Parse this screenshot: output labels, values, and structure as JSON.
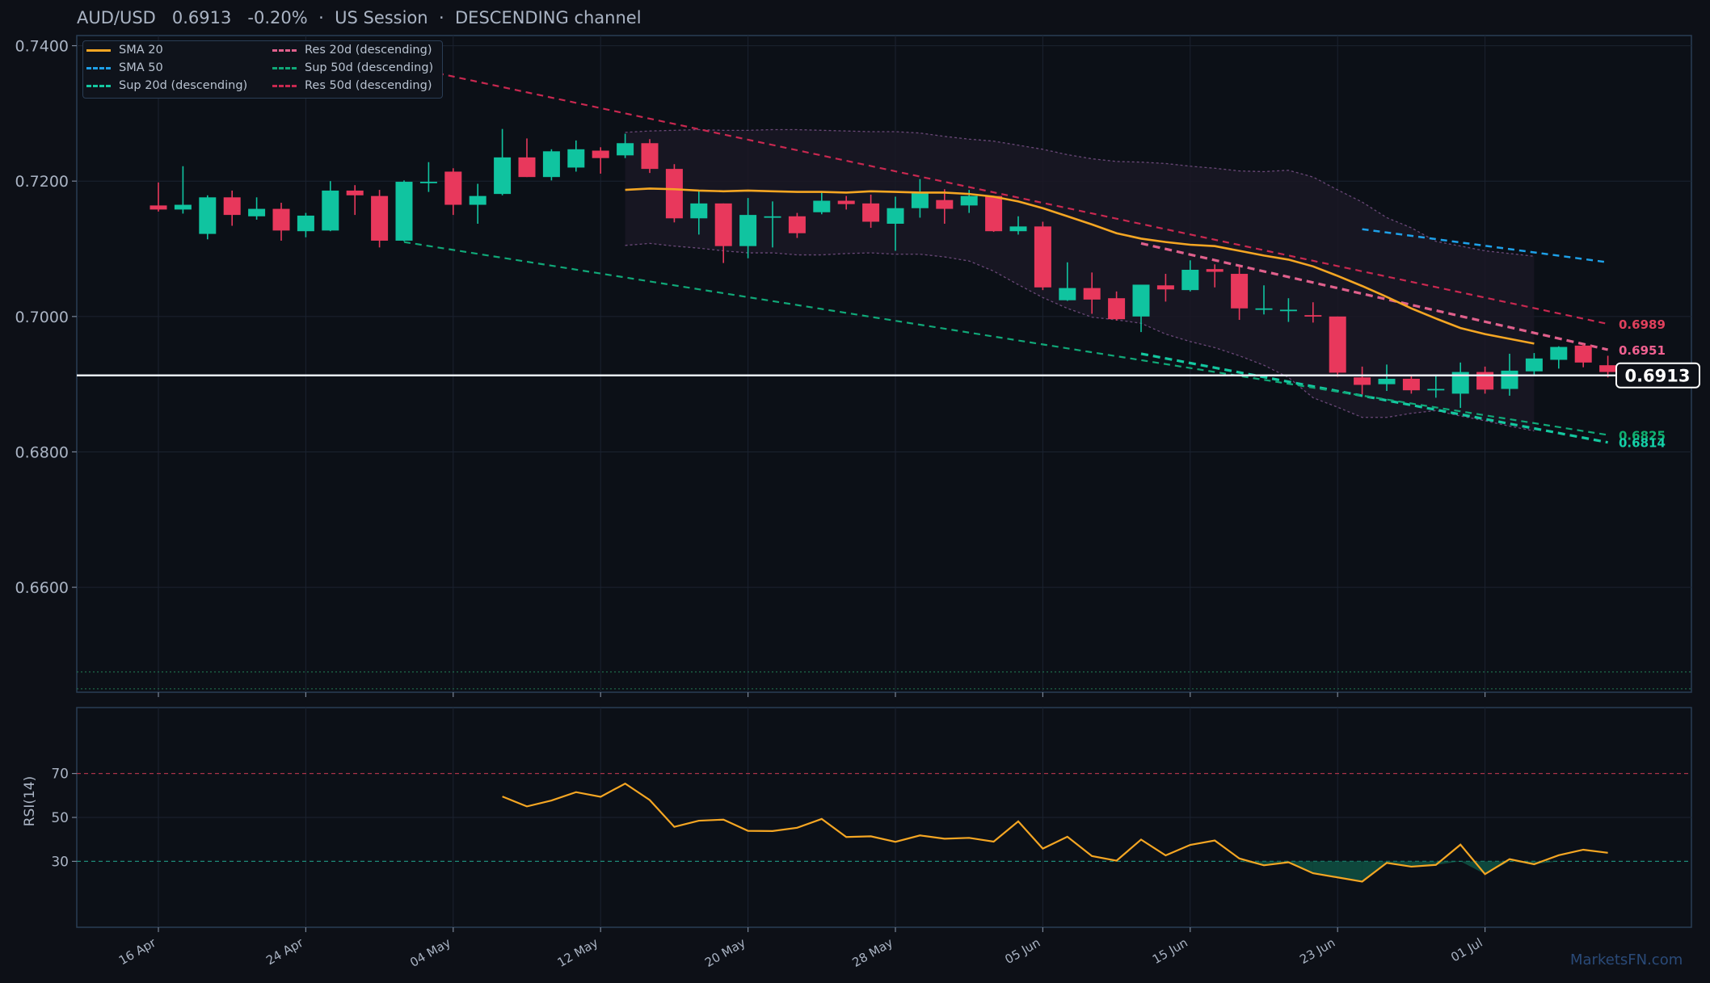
{
  "header": {
    "symbol": "AUD/USD",
    "price": "0.6913",
    "change": "-0.20%",
    "sep1": "·",
    "session": "US Session",
    "sep2": "·",
    "channel": "DESCENDING channel"
  },
  "legend": [
    {
      "label": "SMA 20",
      "color": "#f5a623",
      "style": "solid"
    },
    {
      "label": "SMA 50",
      "color": "#1ea0e8",
      "style": "dashed"
    },
    {
      "label": "Sup 20d (descending)",
      "color": "#14c8a0",
      "style": "dashed"
    },
    {
      "label": "Res 20d (descending)",
      "color": "#e0608c",
      "style": "dashed"
    },
    {
      "label": "Sup 50d (descending)",
      "color": "#10a878",
      "style": "dashed"
    },
    {
      "label": "Res 50d (descending)",
      "color": "#c82850",
      "style": "dashed"
    }
  ],
  "watermark": "MarketsFN.com",
  "colors": {
    "up": "#10c4a0",
    "down": "#e8385c",
    "sma20": "#f5a623",
    "sma50": "#1ea0e8",
    "last": "#ffffff",
    "grid": "#1b2230",
    "frame": "#2a3d55"
  },
  "chart_data": [
    {
      "type": "candlestick",
      "title": "AUD/USD",
      "ylim": [
        0.6445,
        0.7415
      ],
      "yticks": [
        "0.7400",
        "0.7200",
        "0.7000",
        "0.6800",
        "0.6600"
      ],
      "ytick_values": [
        0.74,
        0.72,
        0.7,
        0.68,
        0.66
      ],
      "xticks": [
        "16 Apr",
        "24 Apr",
        "04 May",
        "12 May",
        "20 May",
        "28 May",
        "05 Jun",
        "15 Jun",
        "23 Jun",
        "01 Jul"
      ],
      "xtick_index": [
        0,
        6,
        12,
        18,
        24,
        30,
        36,
        42,
        48,
        54
      ],
      "candles": [
        [
          0.7164,
          0.7198,
          0.7155,
          0.7158
        ],
        [
          0.7158,
          0.7222,
          0.7152,
          0.7165
        ],
        [
          0.7122,
          0.7179,
          0.7114,
          0.7176
        ],
        [
          0.7176,
          0.7186,
          0.7134,
          0.715
        ],
        [
          0.7148,
          0.7176,
          0.7143,
          0.7159
        ],
        [
          0.7159,
          0.7168,
          0.7112,
          0.7127
        ],
        [
          0.7126,
          0.7153,
          0.7117,
          0.7149
        ],
        [
          0.7127,
          0.72,
          0.7126,
          0.7186
        ],
        [
          0.7186,
          0.7194,
          0.715,
          0.7179
        ],
        [
          0.7178,
          0.7187,
          0.7102,
          0.7112
        ],
        [
          0.7112,
          0.7201,
          0.7111,
          0.7199
        ],
        [
          0.7198,
          0.7228,
          0.7184,
          0.7199
        ],
        [
          0.7214,
          0.7219,
          0.715,
          0.7165
        ],
        [
          0.7165,
          0.7196,
          0.7137,
          0.7178
        ],
        [
          0.7181,
          0.7277,
          0.7179,
          0.7235
        ],
        [
          0.7235,
          0.7263,
          0.7206,
          0.7206
        ],
        [
          0.7206,
          0.7247,
          0.7201,
          0.7244
        ],
        [
          0.722,
          0.726,
          0.7214,
          0.7247
        ],
        [
          0.7245,
          0.725,
          0.7211,
          0.7234
        ],
        [
          0.7238,
          0.727,
          0.7234,
          0.7256
        ],
        [
          0.7256,
          0.7262,
          0.7212,
          0.7218
        ],
        [
          0.7218,
          0.7225,
          0.7139,
          0.7145
        ],
        [
          0.7145,
          0.7187,
          0.7121,
          0.7167
        ],
        [
          0.7167,
          0.7167,
          0.7079,
          0.7104
        ],
        [
          0.7104,
          0.7175,
          0.7086,
          0.715
        ],
        [
          0.7147,
          0.717,
          0.7102,
          0.7148
        ],
        [
          0.7148,
          0.7153,
          0.7116,
          0.7123
        ],
        [
          0.7154,
          0.7185,
          0.7151,
          0.7171
        ],
        [
          0.7171,
          0.7178,
          0.7158,
          0.7166
        ],
        [
          0.7167,
          0.718,
          0.7131,
          0.714
        ],
        [
          0.7137,
          0.7177,
          0.7097,
          0.716
        ],
        [
          0.716,
          0.7203,
          0.7146,
          0.7182
        ],
        [
          0.7172,
          0.7188,
          0.7137,
          0.7159
        ],
        [
          0.7164,
          0.7187,
          0.7153,
          0.7178
        ],
        [
          0.7178,
          0.7178,
          0.7125,
          0.7126
        ],
        [
          0.7126,
          0.7148,
          0.7121,
          0.7133
        ],
        [
          0.7133,
          0.714,
          0.7039,
          0.7043
        ],
        [
          0.7024,
          0.708,
          0.7023,
          0.7042
        ],
        [
          0.7042,
          0.7065,
          0.7004,
          0.7025
        ],
        [
          0.7027,
          0.7037,
          0.6994,
          0.6996
        ],
        [
          0.7,
          0.7045,
          0.6977,
          0.7047
        ],
        [
          0.7046,
          0.7063,
          0.7022,
          0.704
        ],
        [
          0.7039,
          0.7083,
          0.7037,
          0.7069
        ],
        [
          0.707,
          0.7077,
          0.7043,
          0.7066
        ],
        [
          0.7063,
          0.7074,
          0.6995,
          0.7012
        ],
        [
          0.7012,
          0.7046,
          0.7003,
          0.7012
        ],
        [
          0.701,
          0.7027,
          0.6992,
          0.701
        ],
        [
          0.7002,
          0.7021,
          0.6991,
          0.7
        ],
        [
          0.7,
          0.7,
          0.6911,
          0.6917
        ],
        [
          0.691,
          0.6926,
          0.6885,
          0.6899
        ],
        [
          0.69,
          0.6929,
          0.689,
          0.6908
        ],
        [
          0.6908,
          0.6913,
          0.6886,
          0.6891
        ],
        [
          0.6893,
          0.6912,
          0.688,
          0.6893
        ],
        [
          0.6886,
          0.6932,
          0.6865,
          0.6918
        ],
        [
          0.6918,
          0.6926,
          0.6886,
          0.6892
        ],
        [
          0.6893,
          0.6945,
          0.6883,
          0.692
        ],
        [
          0.6919,
          0.6946,
          0.6914,
          0.6938
        ],
        [
          0.6936,
          0.6956,
          0.6923,
          0.6955
        ],
        [
          0.6957,
          0.6959,
          0.6925,
          0.6932
        ],
        [
          0.6928,
          0.6942,
          0.691,
          0.6918
        ]
      ],
      "sma20": {
        "start": 19,
        "values": [
          0.7187,
          0.7189,
          0.7188,
          0.7186,
          0.7185,
          0.7186,
          0.7185,
          0.7184,
          0.7184,
          0.7183,
          0.7185,
          0.7184,
          0.7183,
          0.7183,
          0.7181,
          0.7177,
          0.717,
          0.716,
          0.7148,
          0.7136,
          0.7123,
          0.7115,
          0.711,
          0.7106,
          0.7104,
          0.7097,
          0.709,
          0.7084,
          0.7074,
          0.706,
          0.7045,
          0.7029,
          0.7012,
          0.6997,
          0.6983,
          0.6974,
          0.6967,
          0.696
        ]
      },
      "bands": {
        "start": 19,
        "upper": [
          0.7272,
          0.7274,
          0.7275,
          0.7276,
          0.7275,
          0.7275,
          0.7276,
          0.7276,
          0.7275,
          0.7274,
          0.7273,
          0.7273,
          0.7271,
          0.7266,
          0.7262,
          0.7259,
          0.7253,
          0.7247,
          0.7239,
          0.7233,
          0.7229,
          0.7228,
          0.7226,
          0.7222,
          0.7219,
          0.7215,
          0.7214,
          0.7216,
          0.7206,
          0.7187,
          0.7169,
          0.7146,
          0.7131,
          0.7111,
          0.7104,
          0.7097,
          0.7093,
          0.7089
        ],
        "lower": [
          0.7105,
          0.7108,
          0.7104,
          0.7101,
          0.7097,
          0.7094,
          0.7094,
          0.7091,
          0.7091,
          0.7093,
          0.7094,
          0.7092,
          0.7092,
          0.7088,
          0.7082,
          0.7067,
          0.7047,
          0.7028,
          0.7012,
          0.6999,
          0.6995,
          0.699,
          0.6974,
          0.6963,
          0.6954,
          0.6942,
          0.6928,
          0.691,
          0.688,
          0.6866,
          0.6851,
          0.6851,
          0.6857,
          0.6861,
          0.6853,
          0.6846,
          0.6838,
          0.6831
        ]
      },
      "lines": [
        {
          "name": "SMA 50",
          "color": "#1ea0e8",
          "dash": "8 6",
          "width": 2.5,
          "points": [
            [
              49,
              0.7129
            ],
            [
              59,
              0.708
            ]
          ]
        },
        {
          "name": "Res 20d (descending)",
          "color": "#e0608c",
          "dash": "9 6",
          "width": 3.2,
          "points": [
            [
              40,
              0.7108
            ],
            [
              59,
              0.6951
            ]
          ]
        },
        {
          "name": "Sup 20d (descending)",
          "color": "#14c8a0",
          "dash": "9 6",
          "width": 3.2,
          "points": [
            [
              40,
              0.6945
            ],
            [
              59,
              0.6814
            ]
          ]
        },
        {
          "name": "Res 50d (descending)",
          "color": "#c82850",
          "dash": "8 6",
          "width": 2.2,
          "points": [
            [
              10,
              0.737
            ],
            [
              59,
              0.6989
            ]
          ]
        },
        {
          "name": "Sup 50d (descending)",
          "color": "#10a878",
          "dash": "8 6",
          "width": 2.2,
          "points": [
            [
              10,
              0.711
            ],
            [
              59,
              0.6825
            ]
          ]
        }
      ],
      "end_labels": [
        {
          "text": "0.6989",
          "value": 0.6989,
          "color": "#e0405c"
        },
        {
          "text": "0.6951",
          "value": 0.6951,
          "color": "#f06090"
        },
        {
          "text": "0.6825",
          "value": 0.6825,
          "color": "#10b070"
        },
        {
          "text": "0.6814",
          "value": 0.6814,
          "color": "#14d0a8"
        }
      ],
      "last_price": {
        "text": "0.6913",
        "value": 0.6913
      },
      "hlines": [
        0.6475,
        0.645
      ]
    },
    {
      "type": "line",
      "ylabel": "RSI(14)",
      "ylim": [
        0,
        100
      ],
      "yticks": [
        "70",
        "50",
        "30"
      ],
      "ytick_values": [
        70,
        50,
        30
      ],
      "overbought": 70,
      "oversold": 30,
      "series": [
        {
          "start": 14,
          "values": [
            59.5,
            55.0,
            57.7,
            61.5,
            59.4,
            65.4,
            57.9,
            45.7,
            48.5,
            49.0,
            43.9,
            43.8,
            45.3,
            49.3,
            41.1,
            41.4,
            38.9,
            41.8,
            40.3,
            40.7,
            39.0,
            48.2,
            35.8,
            41.2,
            32.4,
            30.3,
            39.9,
            32.7,
            37.5,
            39.5,
            31.3,
            28.2,
            29.6,
            24.6,
            22.7,
            20.8,
            29.3,
            27.6,
            28.4,
            37.6,
            24.2,
            31.0,
            28.7,
            32.8,
            35.3,
            33.9
          ]
        }
      ]
    }
  ]
}
